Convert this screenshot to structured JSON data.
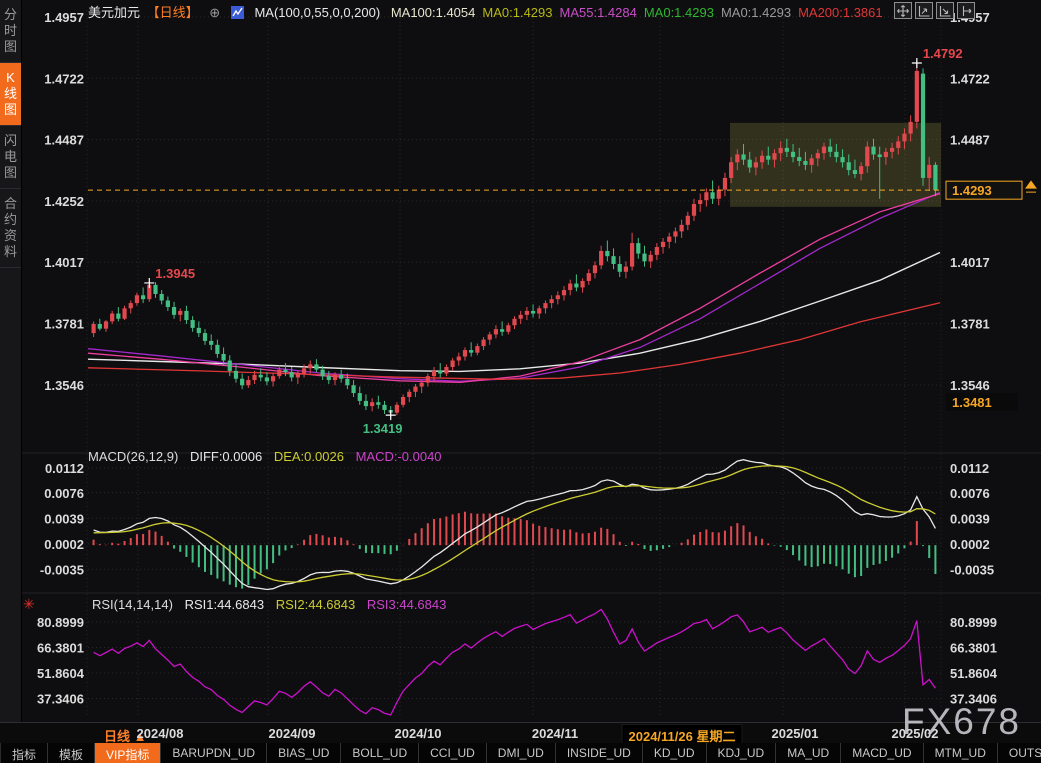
{
  "top_bar": {
    "symbol": "美元加元",
    "period_tag": "【日线】",
    "plus_icon": "⊕",
    "indicator_label": "MA(100,0,55,0,0,200)",
    "ma_values": [
      {
        "label": "MA100:1.4054",
        "color": "#e6e6cf"
      },
      {
        "label": "MA0:1.4293",
        "color": "#b9b914"
      },
      {
        "label": "MA55:1.4284",
        "color": "#c94fc9"
      },
      {
        "label": "MA0:1.4293",
        "color": "#2eb82e"
      },
      {
        "label": "MA0:1.4293",
        "color": "#9a9a9a"
      },
      {
        "label": "MA200:1.3861",
        "color": "#e03636"
      }
    ],
    "window_icons": [
      "pan-icon",
      "zoom-axis-left-icon",
      "zoom-axis-right-icon",
      "shift-right-icon"
    ]
  },
  "sidebar": {
    "tabs": [
      {
        "label": "分时图",
        "active": false
      },
      {
        "label": "K线图",
        "active": true
      },
      {
        "label": "闪电图",
        "active": false
      },
      {
        "label": "合约资料",
        "active": false
      }
    ]
  },
  "macd_panel": {
    "legend": "MACD(26,12,9)",
    "diff_label": "DIFF:0.0006",
    "dea_label": "DEA:0.0026",
    "macd_label": "MACD:-0.0040"
  },
  "rsi_panel": {
    "legend": "RSI(14,14,14)",
    "rsi1_label": "RSI1:44.6843",
    "rsi2_label": "RSI2:44.6843",
    "rsi3_label": "RSI3:44.6843",
    "alert_icon": "✳"
  },
  "x_axis": {
    "period_label": "日线",
    "period_arrow": "▲",
    "ticks": [
      "2024/08",
      "2024/09",
      "2024/10",
      "2024/11",
      "2025/01",
      "2025/02"
    ],
    "highlight_date": "2024/11/26 星期二"
  },
  "bottom_toolbar": {
    "items": [
      "指标",
      "模板",
      "VIP指标",
      "BARUPDN_UD",
      "BIAS_UD",
      "BOLL_UD",
      "CCI_UD",
      "DMI_UD",
      "INSIDE_UD",
      "KD_UD",
      "KDJ_UD",
      "MA_UD",
      "MACD_UD",
      "MTM_UD",
      "OUTSIDE_UD",
      "&gt;&gt;"
    ],
    "active_item": "VIP指标"
  },
  "watermark": "FX678",
  "colors": {
    "up_candle": "#e1494f",
    "down_candle": "#43bf83",
    "accent_orange": "#f5a623",
    "tab_orange": "#f26b1d",
    "grid": "#2a2a2e",
    "axis_text": "#dcdcdc",
    "ma100": "#e8e8e8",
    "ma55_purple": "#a428cc",
    "ma_pink": "#ee3fa0",
    "ma200": "#e03636",
    "diff_line": "#e8e8e8",
    "dea_line": "#cccc33",
    "rsi_line": "#cc10cc",
    "annotation_red": "#e5484d",
    "annotation_green": "#43bf83",
    "box_fill": "rgba(168,163,72,0.24)"
  },
  "chart_data": {
    "type": "candlestick-with-indicators",
    "symbol": "美元加元 (USD/CAD)",
    "timeframe": "日线 (daily)",
    "price_axis_ticks": [
      1.4957,
      1.4722,
      1.4487,
      1.4252,
      1.4017,
      1.3781,
      1.3546
    ],
    "right_axis_ticks": [
      1.4957,
      1.4722,
      1.4487,
      1.4017,
      1.3781,
      1.3546
    ],
    "current_price": 1.4293,
    "low_badge_price": 1.3481,
    "annotations": [
      {
        "label": "1.3945",
        "price": 1.3945,
        "type": "swing-high",
        "color": "red"
      },
      {
        "label": "1.3419",
        "price": 1.3419,
        "type": "swing-low",
        "color": "green"
      },
      {
        "label": "1.4792",
        "price": 1.4792,
        "type": "period-high",
        "color": "red"
      }
    ],
    "consolidation_box": {
      "price_top": 1.4551,
      "price_bottom": 1.4229
    },
    "ohlc": [
      [
        1.3745,
        1.379,
        1.373,
        1.378
      ],
      [
        1.378,
        1.38,
        1.3755,
        1.3762
      ],
      [
        1.3762,
        1.3795,
        1.375,
        1.379
      ],
      [
        1.379,
        1.383,
        1.378,
        1.382
      ],
      [
        1.382,
        1.3845,
        1.379,
        1.38
      ],
      [
        1.38,
        1.385,
        1.3795,
        1.384
      ],
      [
        1.384,
        1.387,
        1.382,
        1.386
      ],
      [
        1.386,
        1.39,
        1.385,
        1.389
      ],
      [
        1.389,
        1.392,
        1.386,
        1.3875
      ],
      [
        1.3875,
        1.3945,
        1.3865,
        1.393
      ],
      [
        1.393,
        1.394,
        1.388,
        1.3895
      ],
      [
        1.3895,
        1.391,
        1.3855,
        1.387
      ],
      [
        1.387,
        1.3885,
        1.383,
        1.3845
      ],
      [
        1.3845,
        1.3865,
        1.38,
        1.3815
      ],
      [
        1.3815,
        1.384,
        1.379,
        1.383
      ],
      [
        1.383,
        1.385,
        1.378,
        1.3795
      ],
      [
        1.3795,
        1.381,
        1.375,
        1.3765
      ],
      [
        1.3765,
        1.379,
        1.373,
        1.3745
      ],
      [
        1.3745,
        1.376,
        1.37,
        1.3715
      ],
      [
        1.3715,
        1.374,
        1.368,
        1.37
      ],
      [
        1.37,
        1.372,
        1.365,
        1.3665
      ],
      [
        1.3665,
        1.369,
        1.362,
        1.364
      ],
      [
        1.364,
        1.366,
        1.358,
        1.36
      ],
      [
        1.36,
        1.3625,
        1.3555,
        1.357
      ],
      [
        1.357,
        1.359,
        1.353,
        1.3545
      ],
      [
        1.3545,
        1.358,
        1.3535,
        1.3565
      ],
      [
        1.3565,
        1.36,
        1.355,
        1.3585
      ],
      [
        1.3585,
        1.361,
        1.356,
        1.3575
      ],
      [
        1.3575,
        1.3595,
        1.3545,
        1.356
      ],
      [
        1.356,
        1.359,
        1.354,
        1.358
      ],
      [
        1.358,
        1.362,
        1.357,
        1.3605
      ],
      [
        1.3605,
        1.363,
        1.358,
        1.3595
      ],
      [
        1.3595,
        1.3615,
        1.356,
        1.3575
      ],
      [
        1.3575,
        1.36,
        1.355,
        1.359
      ],
      [
        1.359,
        1.3625,
        1.3575,
        1.361
      ],
      [
        1.361,
        1.364,
        1.359,
        1.3625
      ],
      [
        1.3625,
        1.3645,
        1.3595,
        1.3605
      ],
      [
        1.3605,
        1.362,
        1.3565,
        1.358
      ],
      [
        1.358,
        1.36,
        1.355,
        1.3565
      ],
      [
        1.3565,
        1.3595,
        1.3545,
        1.3585
      ],
      [
        1.3585,
        1.3605,
        1.3555,
        1.357
      ],
      [
        1.357,
        1.359,
        1.353,
        1.3545
      ],
      [
        1.3545,
        1.3565,
        1.35,
        1.3515
      ],
      [
        1.3515,
        1.354,
        1.347,
        1.3485
      ],
      [
        1.3485,
        1.351,
        1.345,
        1.3465
      ],
      [
        1.3465,
        1.3495,
        1.3445,
        1.348
      ],
      [
        1.348,
        1.3505,
        1.3455,
        1.347
      ],
      [
        1.347,
        1.3485,
        1.3435,
        1.345
      ],
      [
        1.345,
        1.3465,
        1.3419,
        1.344
      ],
      [
        1.344,
        1.348,
        1.343,
        1.347
      ],
      [
        1.347,
        1.351,
        1.346,
        1.35
      ],
      [
        1.35,
        1.353,
        1.348,
        1.352
      ],
      [
        1.352,
        1.355,
        1.35,
        1.354
      ],
      [
        1.354,
        1.3565,
        1.3515,
        1.3555
      ],
      [
        1.3555,
        1.359,
        1.354,
        1.358
      ],
      [
        1.358,
        1.3615,
        1.356,
        1.36
      ],
      [
        1.36,
        1.363,
        1.3575,
        1.359
      ],
      [
        1.359,
        1.3625,
        1.358,
        1.3615
      ],
      [
        1.3615,
        1.365,
        1.36,
        1.364
      ],
      [
        1.364,
        1.367,
        1.362,
        1.3655
      ],
      [
        1.3655,
        1.369,
        1.364,
        1.368
      ],
      [
        1.368,
        1.371,
        1.3655,
        1.367
      ],
      [
        1.367,
        1.3705,
        1.366,
        1.3695
      ],
      [
        1.3695,
        1.373,
        1.368,
        1.372
      ],
      [
        1.372,
        1.375,
        1.37,
        1.374
      ],
      [
        1.374,
        1.3775,
        1.3725,
        1.376
      ],
      [
        1.376,
        1.379,
        1.3735,
        1.375
      ],
      [
        1.375,
        1.3785,
        1.374,
        1.3775
      ],
      [
        1.3775,
        1.381,
        1.376,
        1.38
      ],
      [
        1.38,
        1.383,
        1.378,
        1.3815
      ],
      [
        1.3815,
        1.3845,
        1.3795,
        1.383
      ],
      [
        1.383,
        1.3855,
        1.3805,
        1.382
      ],
      [
        1.382,
        1.385,
        1.38,
        1.384
      ],
      [
        1.384,
        1.387,
        1.382,
        1.386
      ],
      [
        1.386,
        1.389,
        1.384,
        1.3875
      ],
      [
        1.3875,
        1.3905,
        1.3855,
        1.389
      ],
      [
        1.389,
        1.3925,
        1.387,
        1.391
      ],
      [
        1.391,
        1.395,
        1.389,
        1.3935
      ],
      [
        1.3935,
        1.397,
        1.3905,
        1.392
      ],
      [
        1.392,
        1.3955,
        1.39,
        1.3945
      ],
      [
        1.3945,
        1.399,
        1.393,
        1.3975
      ],
      [
        1.3975,
        1.402,
        1.3955,
        1.4005
      ],
      [
        1.4005,
        1.408,
        1.399,
        1.406
      ],
      [
        1.406,
        1.41,
        1.402,
        1.404
      ],
      [
        1.404,
        1.407,
        1.399,
        1.401
      ],
      [
        1.401,
        1.404,
        1.396,
        1.398
      ],
      [
        1.398,
        1.402,
        1.3955,
        1.4
      ],
      [
        1.4,
        1.413,
        1.3985,
        1.409
      ],
      [
        1.409,
        1.411,
        1.403,
        1.405
      ],
      [
        1.405,
        1.408,
        1.4,
        1.402
      ],
      [
        1.402,
        1.406,
        1.3995,
        1.4045
      ],
      [
        1.4045,
        1.409,
        1.4025,
        1.4075
      ],
      [
        1.4075,
        1.411,
        1.405,
        1.4095
      ],
      [
        1.4095,
        1.413,
        1.407,
        1.4115
      ],
      [
        1.4115,
        1.415,
        1.409,
        1.4135
      ],
      [
        1.4135,
        1.418,
        1.411,
        1.416
      ],
      [
        1.416,
        1.421,
        1.414,
        1.4195
      ],
      [
        1.4195,
        1.426,
        1.4175,
        1.424
      ],
      [
        1.424,
        1.428,
        1.421,
        1.4255
      ],
      [
        1.4255,
        1.43,
        1.423,
        1.4285
      ],
      [
        1.4285,
        1.433,
        1.424,
        1.426
      ],
      [
        1.426,
        1.431,
        1.4235,
        1.4295
      ],
      [
        1.4295,
        1.436,
        1.427,
        1.434
      ],
      [
        1.434,
        1.442,
        1.432,
        1.44
      ],
      [
        1.44,
        1.445,
        1.437,
        1.443
      ],
      [
        1.443,
        1.447,
        1.439,
        1.441
      ],
      [
        1.441,
        1.444,
        1.436,
        1.438
      ],
      [
        1.438,
        1.442,
        1.435,
        1.44
      ],
      [
        1.44,
        1.4445,
        1.4375,
        1.4425
      ],
      [
        1.4425,
        1.446,
        1.439,
        1.441
      ],
      [
        1.441,
        1.445,
        1.438,
        1.4435
      ],
      [
        1.4435,
        1.448,
        1.4405,
        1.4455
      ],
      [
        1.4455,
        1.449,
        1.442,
        1.444
      ],
      [
        1.444,
        1.447,
        1.44,
        1.442
      ],
      [
        1.442,
        1.4455,
        1.4385,
        1.4405
      ],
      [
        1.4405,
        1.444,
        1.437,
        1.439
      ],
      [
        1.439,
        1.443,
        1.436,
        1.4415
      ],
      [
        1.4415,
        1.445,
        1.4385,
        1.4435
      ],
      [
        1.4435,
        1.4475,
        1.441,
        1.446
      ],
      [
        1.446,
        1.449,
        1.442,
        1.444
      ],
      [
        1.444,
        1.447,
        1.44,
        1.442
      ],
      [
        1.442,
        1.445,
        1.438,
        1.44
      ],
      [
        1.44,
        1.443,
        1.435,
        1.437
      ],
      [
        1.437,
        1.441,
        1.434,
        1.4355
      ],
      [
        1.4355,
        1.44,
        1.433,
        1.4385
      ],
      [
        1.4385,
        1.448,
        1.436,
        1.446
      ],
      [
        1.446,
        1.449,
        1.441,
        1.443
      ],
      [
        1.443,
        1.446,
        1.426,
        1.442
      ],
      [
        1.442,
        1.4455,
        1.439,
        1.444
      ],
      [
        1.444,
        1.4475,
        1.4415,
        1.4455
      ],
      [
        1.4455,
        1.45,
        1.443,
        1.448
      ],
      [
        1.448,
        1.453,
        1.445,
        1.451
      ],
      [
        1.451,
        1.458,
        1.448,
        1.4555
      ],
      [
        1.4555,
        1.4792,
        1.453,
        1.475
      ],
      [
        1.474,
        1.476,
        1.431,
        1.434
      ],
      [
        1.434,
        1.442,
        1.429,
        1.439
      ],
      [
        1.439,
        1.44,
        1.427,
        1.4293
      ]
    ],
    "ma_lines": {
      "ma100": [
        [
          88,
          1.3645
        ],
        [
          160,
          1.3636
        ],
        [
          240,
          1.3626
        ],
        [
          320,
          1.3613
        ],
        [
          400,
          1.3601
        ],
        [
          460,
          1.3598
        ],
        [
          520,
          1.3608
        ],
        [
          580,
          1.363
        ],
        [
          640,
          1.3668
        ],
        [
          700,
          1.3722
        ],
        [
          760,
          1.379
        ],
        [
          820,
          1.3868
        ],
        [
          880,
          1.3948
        ],
        [
          940,
          1.4054
        ]
      ],
      "ma55_purple": [
        [
          88,
          1.3685
        ],
        [
          160,
          1.3658
        ],
        [
          240,
          1.3625
        ],
        [
          320,
          1.3592
        ],
        [
          400,
          1.357
        ],
        [
          460,
          1.356
        ],
        [
          520,
          1.3572
        ],
        [
          580,
          1.3615
        ],
        [
          640,
          1.369
        ],
        [
          700,
          1.38
        ],
        [
          760,
          1.3935
        ],
        [
          820,
          1.407
        ],
        [
          880,
          1.4185
        ],
        [
          940,
          1.4284
        ]
      ],
      "ma_pink": [
        [
          88,
          1.3668
        ],
        [
          160,
          1.3645
        ],
        [
          240,
          1.3615
        ],
        [
          320,
          1.3582
        ],
        [
          400,
          1.3562
        ],
        [
          460,
          1.3556
        ],
        [
          520,
          1.358
        ],
        [
          580,
          1.3635
        ],
        [
          640,
          1.372
        ],
        [
          700,
          1.384
        ],
        [
          760,
          1.3975
        ],
        [
          820,
          1.4105
        ],
        [
          880,
          1.421
        ],
        [
          940,
          1.428
        ]
      ],
      "ma200": [
        [
          88,
          1.3612
        ],
        [
          200,
          1.36
        ],
        [
          300,
          1.3588
        ],
        [
          400,
          1.3576
        ],
        [
          500,
          1.3568
        ],
        [
          560,
          1.3572
        ],
        [
          620,
          1.3592
        ],
        [
          680,
          1.3625
        ],
        [
          740,
          1.3668
        ],
        [
          800,
          1.372
        ],
        [
          860,
          1.3788
        ],
        [
          940,
          1.3861
        ]
      ]
    },
    "macd": {
      "params": [
        26,
        12,
        9
      ],
      "diff": 0.0006,
      "dea": 0.0026,
      "hist": -0.004,
      "y_ticks": [
        0.0112,
        0.0076,
        0.0039,
        0.0002,
        -0.0035
      ]
    },
    "rsi": {
      "params": [
        14,
        14,
        14
      ],
      "rsi1": 44.6843,
      "rsi2": 44.6843,
      "rsi3": 44.6843,
      "y_ticks": [
        80.8999,
        66.3801,
        51.8604,
        37.3406
      ]
    }
  }
}
